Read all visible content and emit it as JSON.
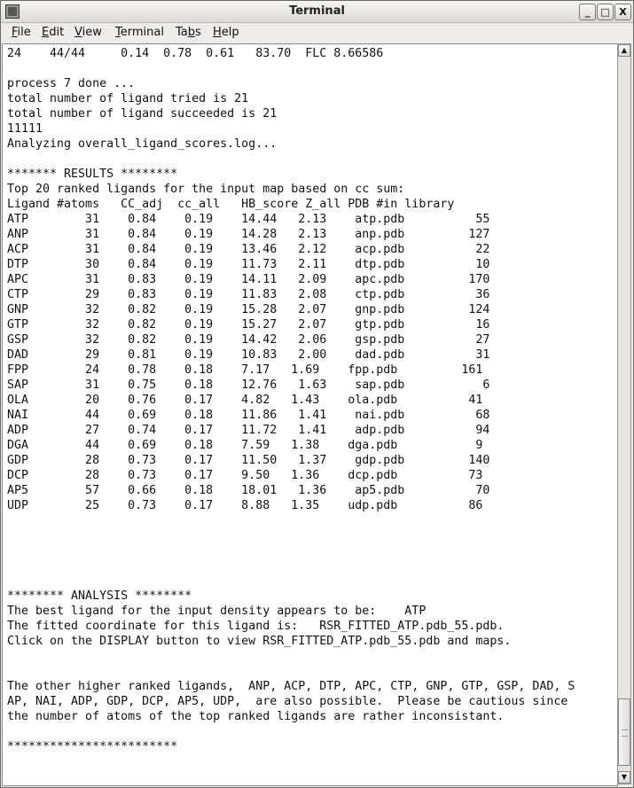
{
  "window": {
    "title": "Terminal"
  },
  "menu": [
    "File",
    "Edit",
    "View",
    "Terminal",
    "Tabs",
    "Help"
  ],
  "menu_mnemonics": [
    "F",
    "E",
    "V",
    "T",
    "b",
    "H"
  ],
  "scrollbar": {
    "position_fraction": 0.92
  },
  "terminal": {
    "lines": [
      "24    44/44     0.14  0.78  0.61   83.70  FLC 8.66586",
      "",
      "process 7 done ...",
      "total number of ligand tried is 21",
      "total number of ligand succeeded is 21",
      "11111",
      "Analyzing overall_ligand_scores.log...",
      "",
      "******* RESULTS ********",
      "Top 20 ranked ligands for the input map based on cc sum:",
      "Ligand #atoms   CC_adj  cc_all   HB_score Z_all PDB #in library",
      "ATP        31    0.84    0.19    14.44   2.13    atp.pdb          55",
      "ANP        31    0.84    0.19    14.28   2.13    anp.pdb         127",
      "ACP        31    0.84    0.19    13.46   2.12    acp.pdb          22",
      "DTP        30    0.84    0.19    11.73   2.11    dtp.pdb          10",
      "APC        31    0.83    0.19    14.11   2.09    apc.pdb         170",
      "CTP        29    0.83    0.19    11.83   2.08    ctp.pdb          36",
      "GNP        32    0.82    0.19    15.28   2.07    gnp.pdb         124",
      "GTP        32    0.82    0.19    15.27   2.07    gtp.pdb          16",
      "GSP        32    0.82    0.19    14.42   2.06    gsp.pdb          27",
      "DAD        29    0.81    0.19    10.83   2.00    dad.pdb          31",
      "FPP        24    0.78    0.18    7.17   1.69    fpp.pdb         161",
      "SAP        31    0.75    0.18    12.76   1.63    sap.pdb           6",
      "OLA        20    0.76    0.17    4.82   1.43    ola.pdb          41",
      "NAI        44    0.69    0.18    11.86   1.41    nai.pdb          68",
      "ADP        27    0.74    0.17    11.72   1.41    adp.pdb          94",
      "DGA        44    0.69    0.18    7.59   1.38    dga.pdb           9",
      "GDP        28    0.73    0.17    11.50   1.37    gdp.pdb         140",
      "DCP        28    0.73    0.17    9.50   1.36    dcp.pdb          73",
      "AP5        57    0.66    0.18    18.01   1.36    ap5.pdb          70",
      "UDP        25    0.73    0.17    8.88   1.35    udp.pdb          86",
      "",
      "",
      "",
      "",
      "",
      "******** ANALYSIS ********",
      "The best ligand for the input density appears to be:    ATP",
      "The fitted coordinate for this ligand is:   RSR_FITTED_ATP.pdb_55.pdb.",
      "Click on the DISPLAY button to view RSR_FITTED_ATP.pdb_55.pdb and maps.",
      "",
      "",
      "The other higher ranked ligands,  ANP, ACP, DTP, APC, CTP, GNP, GTP, GSP, DAD, S",
      "AP, NAI, ADP, GDP, DCP, AP5, UDP,  are also possible.  Please be cautious since",
      "the number of atoms of the top ranked ligands are rather inconsistant.",
      "",
      "************************"
    ]
  }
}
